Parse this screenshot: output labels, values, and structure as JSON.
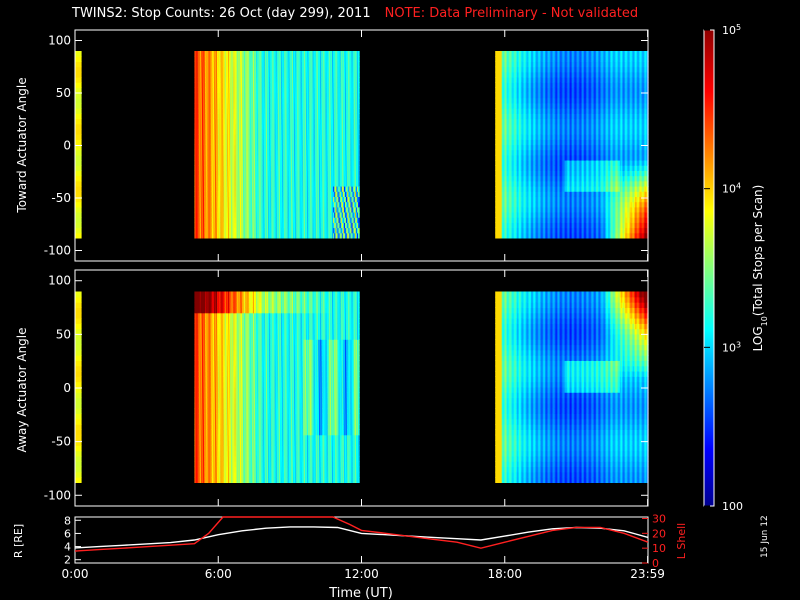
{
  "header": {
    "title": "TWINS2: Stop Counts: 26 Oct (day 299), 2011",
    "note": "NOTE: Data Preliminary - Not validated"
  },
  "side_date": "15 Jun 12",
  "colors": {
    "background": "#000000",
    "axes": "#ffffff",
    "note_text": "#ff2020",
    "l_shell_line": "#ff2020",
    "r_line": "#ffffff"
  },
  "chart_data": [
    {
      "type": "heatmap",
      "panel": "top",
      "ylabel": "Toward Actuator Angle",
      "ylim": [
        -110,
        110
      ],
      "yticks": [
        100,
        50,
        0,
        -50,
        -100
      ],
      "xlim": [
        0,
        24
      ],
      "data_intervals_ut": [
        [
          0.0,
          0.05
        ],
        [
          5.0,
          11.9
        ],
        [
          17.6,
          24.0
        ]
      ],
      "angle_range": [
        -88,
        90
      ]
    },
    {
      "type": "heatmap",
      "panel": "middle",
      "ylabel": "Away Actuator Angle",
      "ylim": [
        -110,
        110
      ],
      "yticks": [
        100,
        50,
        0,
        -50,
        -100
      ],
      "xlim": [
        0,
        24
      ],
      "data_intervals_ut": [
        [
          0.0,
          0.05
        ],
        [
          5.0,
          11.9
        ],
        [
          17.6,
          24.0
        ]
      ],
      "angle_range": [
        -88,
        90
      ]
    },
    {
      "type": "line",
      "panel": "bottom",
      "xlabel": "Time (UT)",
      "xticks": [
        "0:00",
        "6:00",
        "12:00",
        "18:00",
        "23:59"
      ],
      "xlim": [
        0,
        24
      ],
      "left_axis": {
        "label": "R [RE]",
        "ticks": [
          2,
          4,
          6,
          8
        ],
        "ylim": [
          1.5,
          8.5
        ]
      },
      "right_axis": {
        "label": "L Shell",
        "ticks": [
          0,
          10,
          20,
          30
        ],
        "ylim": [
          0,
          31
        ]
      },
      "series": [
        {
          "name": "R [RE]",
          "axis": "left",
          "x": [
            0,
            1,
            2,
            3,
            4,
            5,
            6,
            7,
            8,
            9,
            10,
            11,
            12,
            13,
            14,
            15,
            16,
            17,
            18,
            19,
            20,
            21,
            22,
            23,
            24
          ],
          "y": [
            3.8,
            4.0,
            4.2,
            4.4,
            4.6,
            5.0,
            5.8,
            6.4,
            6.8,
            7.0,
            7.0,
            6.9,
            6.0,
            5.8,
            5.6,
            5.4,
            5.2,
            5.0,
            5.6,
            6.2,
            6.7,
            6.9,
            6.8,
            6.4,
            5.4
          ]
        },
        {
          "name": "L Shell",
          "axis": "right",
          "x": [
            0,
            1,
            2,
            3,
            4,
            5,
            5.6,
            6.2,
            10.8,
            11.5,
            12,
            13,
            14,
            15,
            16,
            17,
            18,
            19,
            20,
            21,
            22,
            23,
            24
          ],
          "y": [
            8,
            9,
            10,
            11,
            12,
            13,
            20,
            31,
            31,
            26,
            22,
            20,
            18,
            16,
            14,
            10,
            14,
            18,
            22,
            24,
            24,
            20,
            14
          ]
        }
      ]
    }
  ],
  "colorbar": {
    "label": "LOG10(Total Stops per Scan)",
    "scale": "log",
    "range": [
      100,
      100000
    ],
    "tick_labels": [
      "10^5",
      "10^4",
      "10^3",
      "100"
    ],
    "tick_values": [
      100000,
      10000,
      1000,
      100
    ]
  }
}
